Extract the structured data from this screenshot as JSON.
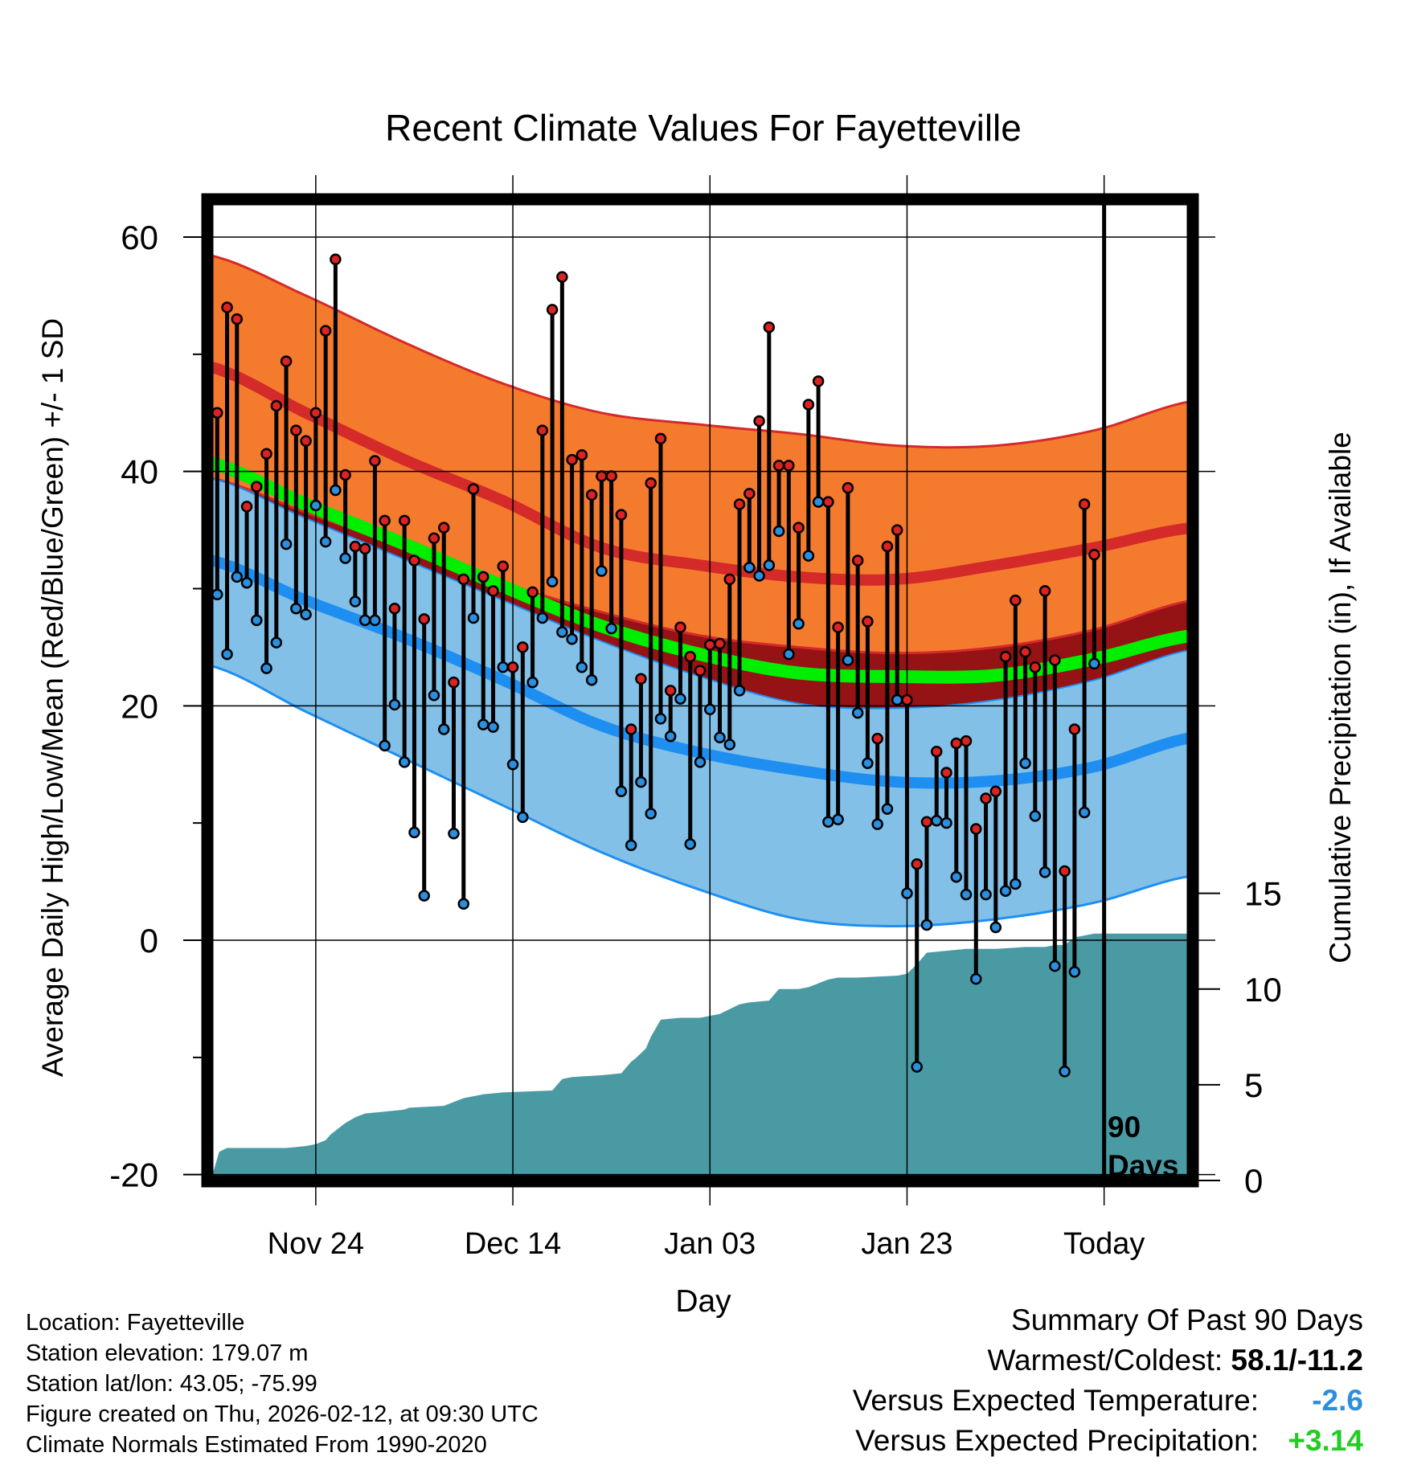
{
  "chart_data": {
    "type": "climate-range",
    "title": "Recent Climate Values For Fayetteville",
    "xlabel": "Day",
    "ylabel_left": "Average Daily High/Low/Mean (Red/Blue/Green) +/- 1 SD",
    "ylabel_right": "Cumulative Precipitation (in), If Available",
    "x_ticks": [
      {
        "day": 11,
        "label": "Nov 24"
      },
      {
        "day": 31,
        "label": "Dec 14"
      },
      {
        "day": 51,
        "label": "Jan 03"
      },
      {
        "day": 71,
        "label": "Jan 23"
      },
      {
        "day": 91,
        "label": "Today"
      }
    ],
    "xlim": [
      0,
      100
    ],
    "ylim_temp": [
      -20,
      65
    ],
    "temp_ticks": [
      -20,
      0,
      20,
      40,
      60
    ],
    "temp_minor_ticks": [
      -10,
      10,
      30,
      50
    ],
    "precip_ticks": [
      0,
      5,
      10,
      15
    ],
    "precip_range_at_temp_axis": {
      "precip_zero_at_temp": -20.5,
      "precip_15_at_temp": 4
    },
    "today_marker": {
      "day": 91,
      "label_line1": "90",
      "label_line2": "Days"
    },
    "normals": {
      "days": [
        0,
        10,
        20,
        30,
        40,
        50,
        60,
        70,
        80,
        90,
        100
      ],
      "high_mean": [
        49,
        45,
        41,
        37.5,
        33.5,
        32,
        31,
        30.8,
        32,
        33.5,
        35.2
      ],
      "high_upper": [
        58.5,
        55,
        51,
        47.5,
        45,
        44,
        43.2,
        42.2,
        42.2,
        43.5,
        46
      ],
      "high_lower": [
        39.5,
        36.5,
        33.5,
        30.5,
        28,
        26,
        25,
        24.5,
        25,
        26.5,
        29
      ],
      "low_mean": [
        32.5,
        29,
        25.8,
        22.2,
        18.3,
        16,
        14.5,
        13.5,
        13.6,
        14.8,
        17.3
      ],
      "low_upper": [
        39.5,
        36,
        32.5,
        29,
        25.5,
        22.5,
        20.2,
        19.8,
        20.5,
        22.2,
        24.8
      ],
      "low_lower": [
        23.5,
        19.5,
        15.5,
        11.5,
        7.5,
        4.3,
        1.8,
        1.2,
        1.8,
        3.2,
        5.5
      ],
      "mean": [
        40.8,
        37.2,
        33.8,
        30.2,
        26.8,
        24.4,
        22.8,
        22.5,
        22.6,
        24,
        26
      ]
    },
    "series": [
      {
        "name": "Daily High",
        "color": "#dd2222",
        "values": [
          45,
          54,
          53,
          37,
          38.7,
          41.5,
          45.6,
          49.4,
          43.5,
          42.6,
          45,
          52,
          58.1,
          39.7,
          33.6,
          33.4,
          40.9,
          35.8,
          28.3,
          35.8,
          32.4,
          27.4,
          34.3,
          35.2,
          22,
          30.8,
          38.5,
          31,
          29.8,
          31.9,
          23.3,
          25,
          29.7,
          43.5,
          53.8,
          56.6,
          41,
          41.4,
          38,
          39.6,
          39.6,
          36.3,
          18,
          22.3,
          39,
          42.8,
          21.3,
          26.7,
          24.2,
          23,
          25.2,
          25.3,
          30.8,
          37.2,
          38.1,
          44.3,
          52.3,
          40.5,
          40.5,
          35.2,
          45.7,
          47.7,
          37.4,
          26.7,
          38.6,
          32.4,
          27.2,
          17.2,
          33.6,
          35,
          20.5,
          6.5,
          10.1,
          16.1,
          14.3,
          16.8,
          17,
          9.5,
          12.1,
          12.7,
          24.2,
          29,
          24.6,
          23.3,
          29.8,
          23.9,
          5.9,
          18,
          37.2,
          32.9
        ]
      },
      {
        "name": "Daily Low",
        "color": "#2b8fe0",
        "values": [
          29.5,
          24.4,
          31,
          30.5,
          27.3,
          23.2,
          25.4,
          33.8,
          28.3,
          27.8,
          37.1,
          34,
          38.4,
          32.6,
          28.9,
          27.3,
          27.3,
          16.6,
          20.1,
          15.2,
          9.2,
          3.8,
          20.9,
          18,
          9.1,
          3.1,
          27.5,
          18.4,
          18.2,
          23.3,
          15,
          10.5,
          22,
          27.5,
          30.6,
          26.3,
          25.7,
          23.3,
          22.2,
          31.5,
          26.6,
          12.7,
          8.1,
          13.5,
          10.8,
          18.9,
          17.4,
          20.6,
          8.2,
          15.2,
          19.7,
          17.3,
          16.7,
          21.3,
          31.8,
          31.1,
          32,
          34.9,
          24.4,
          27,
          32.8,
          37.4,
          10.1,
          10.3,
          23.9,
          19.4,
          15.1,
          9.9,
          11.2,
          20.5,
          4,
          -10.8,
          1.3,
          10.2,
          10,
          5.4,
          3.9,
          -3.3,
          3.9,
          1.1,
          4.2,
          4.8,
          15.1,
          10.6,
          5.8,
          -2.2,
          -11.2,
          -2.7,
          10.9,
          23.6
        ]
      },
      {
        "name": "Cumulative Precipitation",
        "color": "#4a9aa4",
        "days": [
          0.4,
          1.2,
          2,
          8,
          10,
          11,
          12,
          12.5,
          13,
          14,
          15,
          16,
          18,
          20,
          20.5,
          24,
          26,
          28,
          30,
          35,
          36,
          37,
          40,
          42,
          43,
          43.5,
          44.5,
          45,
          46,
          48,
          50,
          51,
          52,
          54,
          55,
          57,
          58,
          60,
          61,
          63,
          64,
          66,
          70,
          71,
          72,
          73,
          75,
          77,
          80,
          83,
          85,
          86,
          87,
          88,
          90,
          100
        ],
        "values": [
          0.1,
          1.5,
          1.7,
          1.7,
          1.8,
          1.9,
          2.1,
          2.4,
          2.6,
          3,
          3.3,
          3.5,
          3.6,
          3.7,
          3.8,
          3.9,
          4.3,
          4.5,
          4.6,
          4.7,
          5.3,
          5.4,
          5.5,
          5.6,
          6.2,
          6.4,
          6.9,
          7.5,
          8.4,
          8.5,
          8.5,
          8.6,
          8.7,
          9.2,
          9.3,
          9.4,
          10,
          10,
          10.1,
          10.5,
          10.6,
          10.6,
          10.7,
          10.8,
          11.3,
          11.9,
          12,
          12.1,
          12.1,
          12.2,
          12.2,
          12.3,
          12.3,
          12.7,
          12.9,
          12.9
        ]
      }
    ]
  },
  "info": {
    "location": "Location: Fayetteville",
    "elevation": "Station elevation: 179.07 m",
    "latlon": "Station lat/lon: 43.05; -75.99",
    "created": "Figure created on Thu, 2026-02-12, at 09:30 UTC",
    "normals_period": "Climate Normals Estimated From 1990-2020"
  },
  "summary": {
    "title": "Summary Of Past 90 Days",
    "warmest_coldest_label": "Warmest/Coldest: ",
    "warmest_coldest_value": "58.1/-11.2",
    "temp_label": "Versus Expected Temperature:",
    "temp_value": "-2.6",
    "temp_color": "#2b8fe0",
    "precip_label": "Versus Expected Precipitation:",
    "precip_value": "+3.14",
    "precip_color": "#22cc22"
  },
  "colors": {
    "high_band": "#f47a2e",
    "high_mean": "#d42a2a",
    "high_edge": "#d42a2a",
    "overlap_band": "#951215",
    "low_band": "#82c0e8",
    "low_mean": "#1e8ff0",
    "low_edge": "#1e8ff0",
    "mean": "#00ee00",
    "precip": "#4a9aa4",
    "high_dot": "#dd2222",
    "low_dot": "#2b8fe0"
  }
}
